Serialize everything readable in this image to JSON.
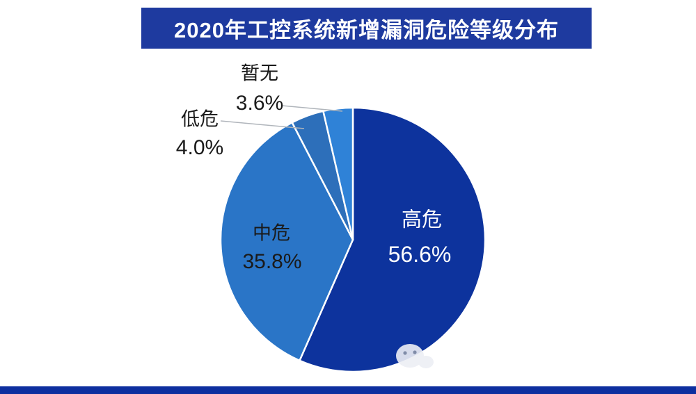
{
  "title": "2020年工控系统新增漏洞危险等级分布",
  "colors": {
    "banner_bg": "#1e3a9f",
    "footer_bg": "#0d2f9f",
    "title_text": "#ffffff",
    "leader_line": "#b0b5bb",
    "slice_divider": "#ffffff"
  },
  "watermark_icon": "wechat-icon",
  "chart_data": {
    "type": "pie",
    "title": "2020年工控系统新增漏洞危险等级分布",
    "legend": "none",
    "start_angle_deg": 0,
    "direction": "clockwise",
    "slices": [
      {
        "name": "高危",
        "value": 56.6,
        "pct_label": "56.6%",
        "color": "#0d339d",
        "label_text_color": "#ffffff",
        "label_placement": "inside"
      },
      {
        "name": "中危",
        "value": 35.8,
        "pct_label": "35.8%",
        "color": "#2a75c7",
        "label_text_color": "#1a1a1a",
        "label_placement": "inside"
      },
      {
        "name": "低危",
        "value": 4.0,
        "pct_label": "4.0%",
        "color": "#2d6fba",
        "label_text_color": "#1a1a1a",
        "label_placement": "outside-with-leader-line"
      },
      {
        "name": "暂无",
        "value": 3.6,
        "pct_label": "3.6%",
        "color": "#2f82d7",
        "label_text_color": "#1a1a1a",
        "label_placement": "outside-with-leader-line"
      }
    ]
  }
}
